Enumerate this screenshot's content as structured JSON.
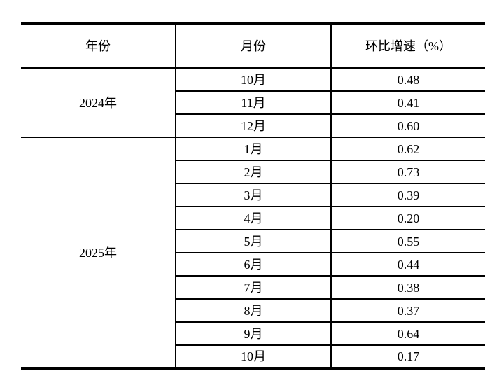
{
  "page": {
    "background": "#ffffff",
    "line_color": "#000000",
    "text_color": "#000000"
  },
  "table": {
    "headers": [
      "年份",
      "月份",
      "环比增速（%）"
    ],
    "groups": [
      {
        "year": "2024年",
        "rows": [
          [
            "10月",
            "0.48"
          ],
          [
            "11月",
            "0.41"
          ],
          [
            "12月",
            "0.60"
          ]
        ]
      },
      {
        "year": "2025年",
        "rows": [
          [
            "1月",
            "0.62"
          ],
          [
            "2月",
            "0.73"
          ],
          [
            "3月",
            "0.39"
          ],
          [
            "4月",
            "0.20"
          ],
          [
            "5月",
            "0.55"
          ],
          [
            "6月",
            "0.44"
          ],
          [
            "7月",
            "0.38"
          ],
          [
            "8月",
            "0.37"
          ],
          [
            "9月",
            "0.64"
          ],
          [
            "10月",
            "0.17"
          ]
        ]
      }
    ]
  }
}
